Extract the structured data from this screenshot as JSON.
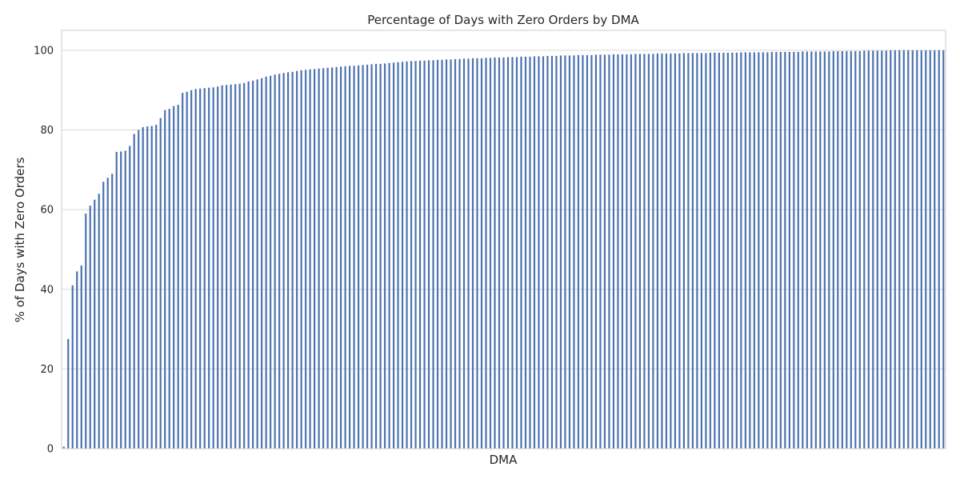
{
  "chart_data": {
    "type": "bar",
    "title": "Percentage of Days with Zero Orders by DMA",
    "xlabel": "DMA",
    "ylabel": "% of Days with Zero Orders",
    "ylim": [
      0,
      105
    ],
    "yticks": [
      0,
      20,
      40,
      60,
      80,
      100
    ],
    "y_tick_labels": [
      "0",
      "20",
      "40",
      "60",
      "80",
      "100"
    ],
    "grid": "horizontal",
    "x_tick_labels_shown": false,
    "bar_color": "#4c72b0",
    "grid_color": "#d9d9d9",
    "frame_color": "#cccccc",
    "values": [
      0.5,
      27.5,
      41.0,
      44.5,
      46.0,
      59.0,
      61.0,
      62.5,
      64.0,
      67.0,
      68.0,
      69.0,
      74.5,
      74.6,
      74.8,
      76.0,
      79.0,
      80.0,
      80.7,
      80.9,
      81.0,
      81.3,
      83.0,
      85.0,
      85.3,
      86.0,
      86.3,
      89.3,
      89.6,
      90.0,
      90.3,
      90.4,
      90.5,
      90.6,
      90.7,
      90.9,
      91.2,
      91.3,
      91.4,
      91.5,
      91.6,
      91.8,
      92.2,
      92.4,
      92.7,
      93.0,
      93.4,
      93.6,
      93.9,
      94.1,
      94.3,
      94.5,
      94.6,
      94.8,
      95.0,
      95.1,
      95.2,
      95.3,
      95.4,
      95.5,
      95.6,
      95.7,
      95.8,
      95.9,
      96.0,
      96.1,
      96.1,
      96.2,
      96.3,
      96.4,
      96.5,
      96.6,
      96.6,
      96.7,
      96.8,
      96.9,
      97.0,
      97.1,
      97.2,
      97.3,
      97.3,
      97.4,
      97.4,
      97.5,
      97.5,
      97.6,
      97.6,
      97.7,
      97.7,
      97.8,
      97.8,
      97.9,
      97.9,
      98.0,
      98.0,
      98.0,
      98.1,
      98.1,
      98.2,
      98.2,
      98.2,
      98.3,
      98.3,
      98.3,
      98.4,
      98.4,
      98.4,
      98.5,
      98.5,
      98.5,
      98.6,
      98.6,
      98.6,
      98.7,
      98.7,
      98.7,
      98.7,
      98.8,
      98.8,
      98.8,
      98.8,
      98.9,
      98.9,
      98.9,
      98.9,
      99.0,
      99.0,
      99.0,
      99.0,
      99.0,
      99.1,
      99.1,
      99.1,
      99.1,
      99.1,
      99.2,
      99.2,
      99.2,
      99.2,
      99.2,
      99.2,
      99.3,
      99.3,
      99.3,
      99.3,
      99.3,
      99.3,
      99.4,
      99.4,
      99.4,
      99.4,
      99.4,
      99.4,
      99.4,
      99.5,
      99.5,
      99.5,
      99.5,
      99.5,
      99.5,
      99.5,
      99.6,
      99.6,
      99.6,
      99.6,
      99.6,
      99.6,
      99.6,
      99.7,
      99.7,
      99.7,
      99.7,
      99.7,
      99.7,
      99.7,
      99.8,
      99.8,
      99.8,
      99.8,
      99.8,
      99.8,
      99.8,
      99.9,
      99.9,
      99.9,
      99.9,
      99.9,
      99.9,
      100.0,
      100.0,
      100.0,
      100.0,
      100.0,
      100.0,
      100.0,
      100.0,
      100.0,
      100.0,
      100.0,
      100.0,
      100.0
    ]
  }
}
